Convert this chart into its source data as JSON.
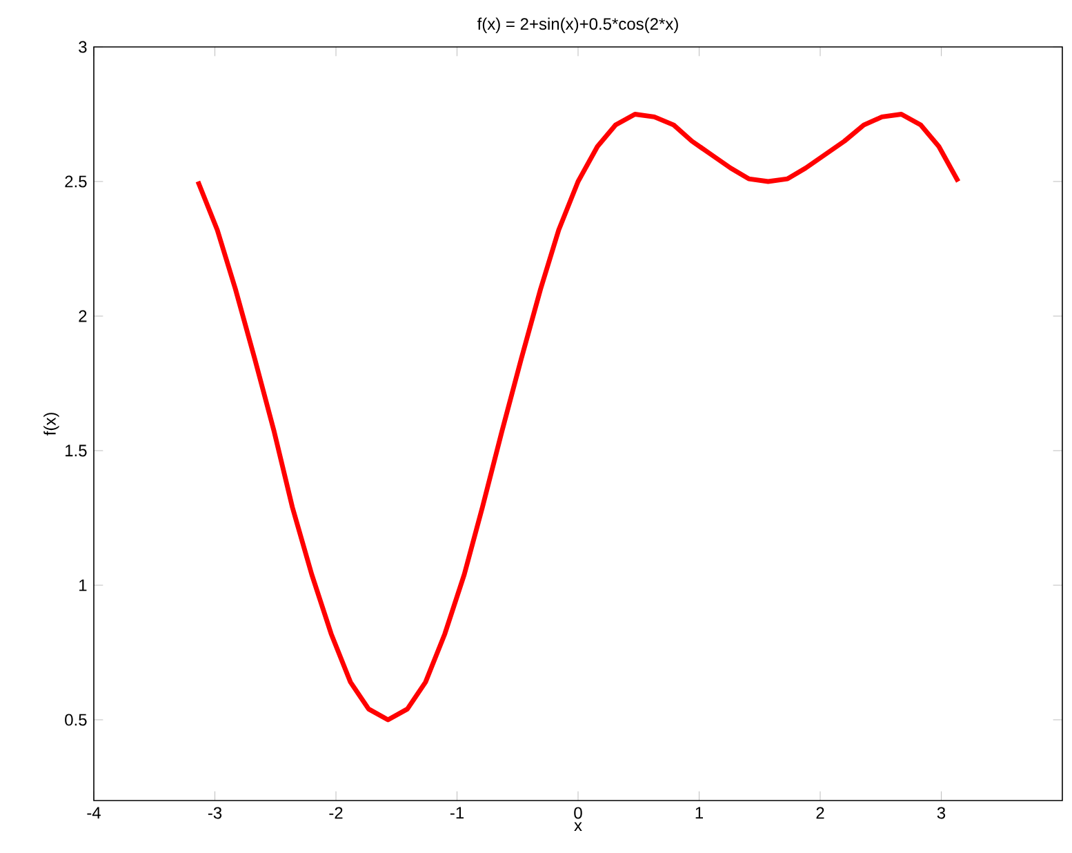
{
  "chart_data": {
    "type": "line",
    "title": "f(x) = 2+sin(x)+0.5*cos(2*x)",
    "xlabel": "x",
    "ylabel": "f(x)",
    "x": [
      -3.14,
      -2.98,
      -2.83,
      -2.67,
      -2.51,
      -2.36,
      -2.2,
      -2.04,
      -1.88,
      -1.73,
      -1.57,
      -1.41,
      -1.26,
      -1.1,
      -0.94,
      -0.79,
      -0.63,
      -0.47,
      -0.31,
      -0.16,
      0,
      0.16,
      0.31,
      0.47,
      0.63,
      0.79,
      0.94,
      1.1,
      1.26,
      1.41,
      1.57,
      1.73,
      1.88,
      2.04,
      2.2,
      2.36,
      2.51,
      2.67,
      2.83,
      2.98,
      3.14
    ],
    "series": [
      {
        "color": "#ff0000",
        "values": [
          2.5,
          2.32,
          2.1,
          1.84,
          1.57,
          1.29,
          1.04,
          0.82,
          0.64,
          0.54,
          0.5,
          0.54,
          0.64,
          0.82,
          1.04,
          1.29,
          1.57,
          1.84,
          2.1,
          2.32,
          2.5,
          2.63,
          2.71,
          2.75,
          2.74,
          2.71,
          2.65,
          2.6,
          2.55,
          2.51,
          2.5,
          2.51,
          2.55,
          2.6,
          2.65,
          2.71,
          2.74,
          2.75,
          2.71,
          2.63,
          2.5
        ]
      }
    ],
    "xlim": [
      -4,
      4
    ],
    "ylim": [
      0.2,
      3
    ],
    "xticks": [
      -4,
      -3,
      -2,
      -1,
      0,
      1,
      2,
      3
    ],
    "yticks": [
      0.5,
      1,
      1.5,
      2,
      2.5,
      3
    ]
  }
}
